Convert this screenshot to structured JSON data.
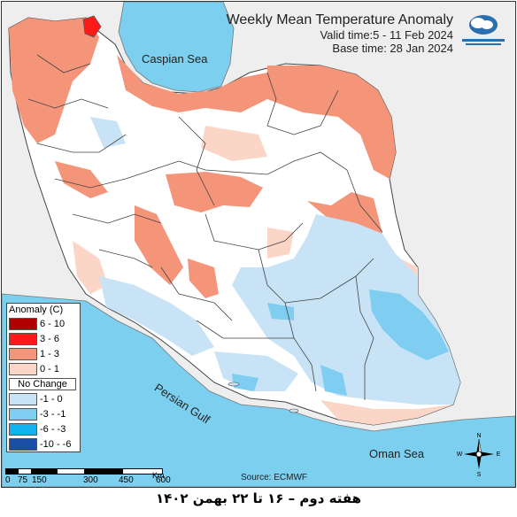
{
  "title": "Weekly Mean Temperature Anomaly",
  "valid_time": "Valid time:5 - 11 Feb 2024",
  "base_time": "Base time: 28 Jan 2024",
  "labels": {
    "caspian": "Caspian Sea",
    "persian_gulf": "Persian Gulf",
    "oman": "Oman Sea",
    "source": "Source: ECMWF"
  },
  "legend": {
    "title": "Anomaly (C)",
    "items": [
      {
        "label": "6 - 10",
        "color": "#b00000"
      },
      {
        "label": "3 - 6",
        "color": "#ff1a1a"
      },
      {
        "label": "1 - 3",
        "color": "#f4957a"
      },
      {
        "label": "0 - 1",
        "color": "#fbd5c6"
      },
      {
        "label": "No Change",
        "color": "#ffffff"
      },
      {
        "label": "-1 - 0",
        "color": "#c8e3f6"
      },
      {
        "label": "-3 - -1",
        "color": "#7fcdf0"
      },
      {
        "label": "-6 - -3",
        "color": "#12b2ee"
      },
      {
        "label": "-10 - -6",
        "color": "#1a4fa8"
      }
    ]
  },
  "scale": {
    "ticks": [
      "0",
      "75",
      "150",
      "300",
      "450",
      "600"
    ],
    "unit": "Km"
  },
  "compass": {
    "n": "N",
    "s": "S",
    "e": "E",
    "w": "W"
  },
  "footer": "هفته دوم – ۱۶ تا ۲۲ بهمن ۱۴۰۲"
}
